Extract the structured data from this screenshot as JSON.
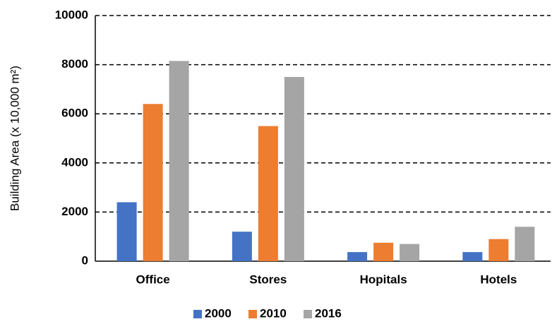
{
  "chart_data": {
    "type": "bar",
    "y_label": "Building Area (x 10,000 m²)",
    "categories": [
      "Office",
      "Stores",
      "Hopitals",
      "Hotels"
    ],
    "series": [
      {
        "name": "2000",
        "color": "#4472c4",
        "values": [
          2400,
          1200,
          370,
          370
        ]
      },
      {
        "name": "2010",
        "color": "#ed7d31",
        "values": [
          6400,
          5500,
          750,
          900
        ]
      },
      {
        "name": "2016",
        "color": "#a5a5a5",
        "values": [
          8150,
          7500,
          700,
          1400
        ]
      }
    ],
    "ylim": [
      0,
      10000
    ],
    "yticks": [
      0,
      2000,
      4000,
      6000,
      8000,
      10000
    ],
    "grid": true,
    "legend": "bottom"
  }
}
